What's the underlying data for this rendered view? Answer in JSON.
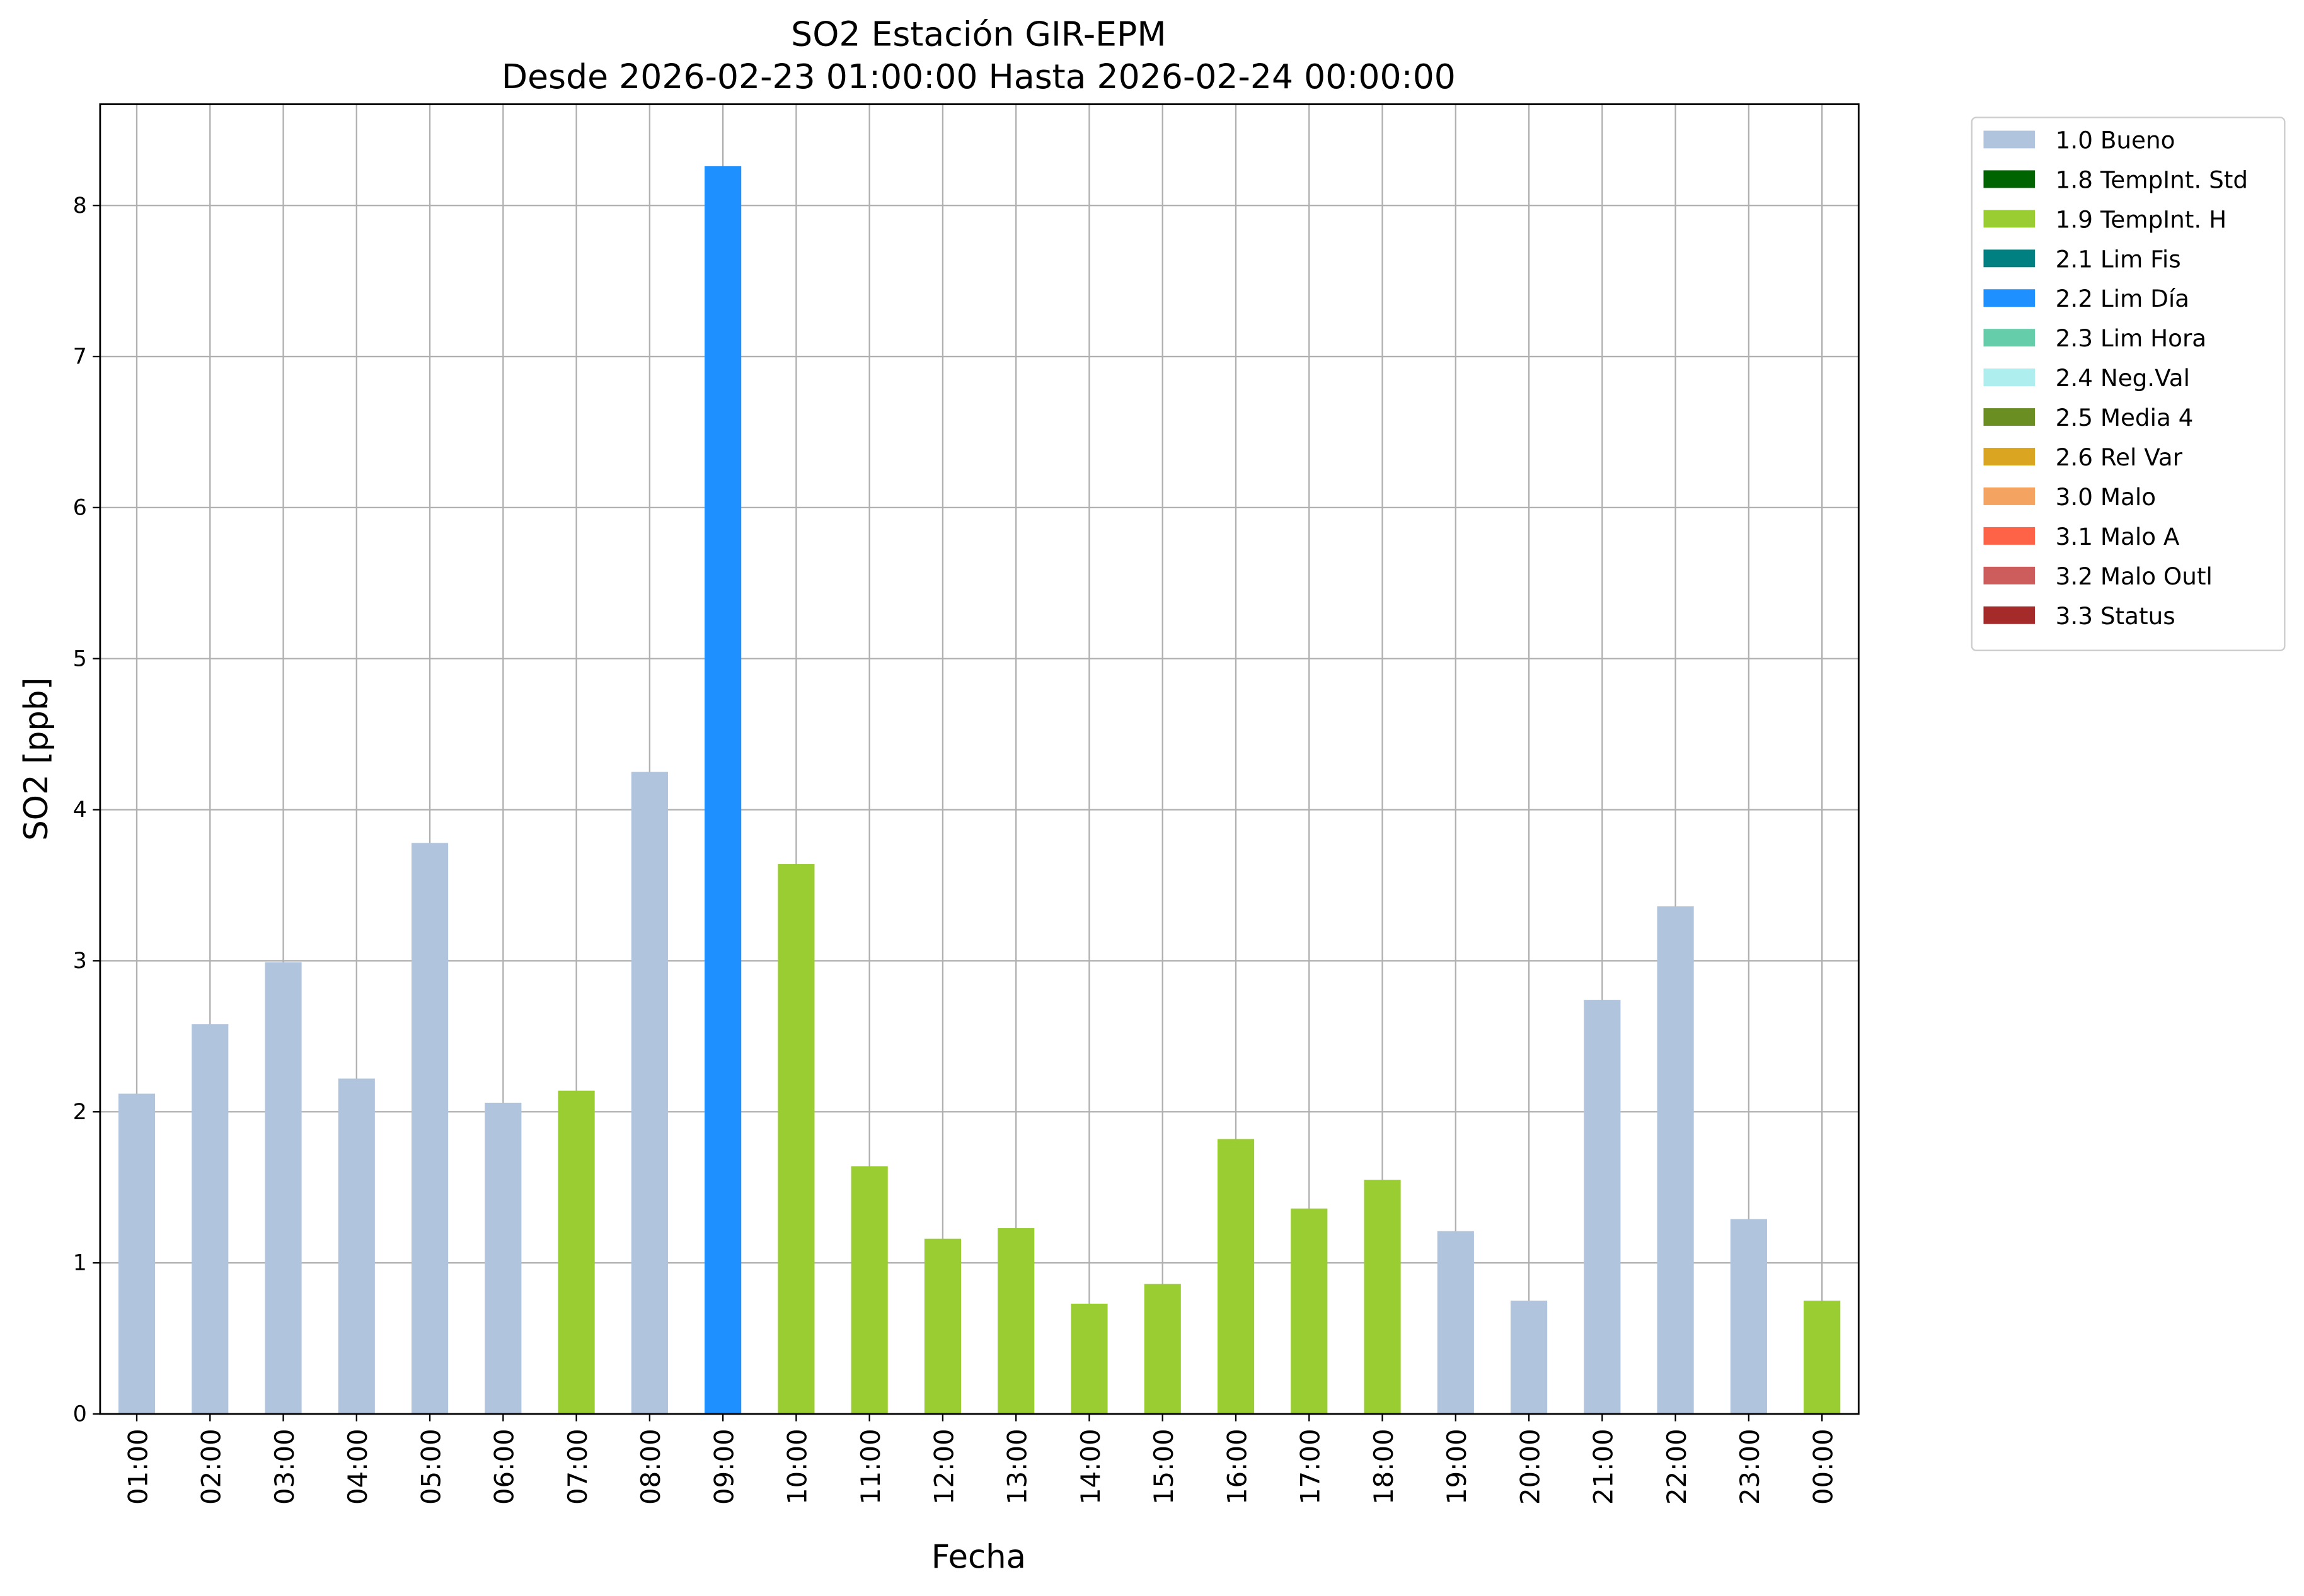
{
  "chart_data": {
    "type": "bar",
    "stacked": true,
    "title": "SO2 Estación GIR-EPM",
    "subtitle": "Desde 2026-02-23 01:00:00 Hasta 2026-02-24 00:00:00",
    "x_label": "Fecha",
    "y_label": "SO2 [ppb]",
    "categories": [
      "01:00",
      "02:00",
      "03:00",
      "04:00",
      "05:00",
      "06:00",
      "07:00",
      "08:00",
      "09:00",
      "10:00",
      "11:00",
      "12:00",
      "13:00",
      "14:00",
      "15:00",
      "16:00",
      "17:00",
      "18:00",
      "19:00",
      "20:00",
      "21:00",
      "22:00",
      "23:00",
      "00:00"
    ],
    "series": [
      {
        "name": "1.0 Bueno",
        "color": "#b0c4de",
        "values": [
          2.12,
          2.58,
          2.99,
          2.22,
          3.78,
          2.06,
          null,
          4.25,
          null,
          null,
          null,
          null,
          null,
          null,
          null,
          null,
          null,
          null,
          1.21,
          0.75,
          2.74,
          3.36,
          1.29,
          null
        ]
      },
      {
        "name": "1.8 TempInt. Std",
        "color": "#006400",
        "values": [
          null,
          null,
          null,
          null,
          null,
          null,
          null,
          null,
          null,
          null,
          null,
          null,
          null,
          null,
          null,
          null,
          null,
          null,
          null,
          null,
          null,
          null,
          null,
          null
        ]
      },
      {
        "name": "1.9 TempInt. H",
        "color": "#9acd32",
        "values": [
          null,
          null,
          null,
          null,
          null,
          null,
          2.14,
          null,
          null,
          3.64,
          1.64,
          1.16,
          1.23,
          0.73,
          0.86,
          1.82,
          1.36,
          1.55,
          null,
          null,
          null,
          null,
          null,
          0.75
        ]
      },
      {
        "name": "2.1 Lim Fis",
        "color": "#008080",
        "values": [
          null,
          null,
          null,
          null,
          null,
          null,
          null,
          null,
          null,
          null,
          null,
          null,
          null,
          null,
          null,
          null,
          null,
          null,
          null,
          null,
          null,
          null,
          null,
          null
        ]
      },
      {
        "name": "2.2 Lim Día",
        "color": "#1e90ff",
        "values": [
          null,
          null,
          null,
          null,
          null,
          null,
          null,
          null,
          8.26,
          null,
          null,
          null,
          null,
          null,
          null,
          null,
          null,
          null,
          null,
          null,
          null,
          null,
          null,
          null
        ]
      },
      {
        "name": "2.3 Lim Hora",
        "color": "#66cdaa",
        "values": [
          null,
          null,
          null,
          null,
          null,
          null,
          null,
          null,
          null,
          null,
          null,
          null,
          null,
          null,
          null,
          null,
          null,
          null,
          null,
          null,
          null,
          null,
          null,
          null
        ]
      },
      {
        "name": "2.4 Neg.Val",
        "color": "#afeeee",
        "values": [
          null,
          null,
          null,
          null,
          null,
          null,
          null,
          null,
          null,
          null,
          null,
          null,
          null,
          null,
          null,
          null,
          null,
          null,
          null,
          null,
          null,
          null,
          null,
          null
        ]
      },
      {
        "name": "2.5 Media 4",
        "color": "#6b8e23",
        "values": [
          null,
          null,
          null,
          null,
          null,
          null,
          null,
          null,
          null,
          null,
          null,
          null,
          null,
          null,
          null,
          null,
          null,
          null,
          null,
          null,
          null,
          null,
          null,
          null
        ]
      },
      {
        "name": "2.6 Rel Var",
        "color": "#daa520",
        "values": [
          null,
          null,
          null,
          null,
          null,
          null,
          null,
          null,
          null,
          null,
          null,
          null,
          null,
          null,
          null,
          null,
          null,
          null,
          null,
          null,
          null,
          null,
          null,
          null
        ]
      },
      {
        "name": "3.0 Malo",
        "color": "#f4a460",
        "values": [
          null,
          null,
          null,
          null,
          null,
          null,
          null,
          null,
          null,
          null,
          null,
          null,
          null,
          null,
          null,
          null,
          null,
          null,
          null,
          null,
          null,
          null,
          null,
          null
        ]
      },
      {
        "name": "3.1 Malo A",
        "color": "#ff6347",
        "values": [
          null,
          null,
          null,
          null,
          null,
          null,
          null,
          null,
          null,
          null,
          null,
          null,
          null,
          null,
          null,
          null,
          null,
          null,
          null,
          null,
          null,
          null,
          null,
          null
        ]
      },
      {
        "name": "3.2 Malo Outl",
        "color": "#cd5c5c",
        "values": [
          null,
          null,
          null,
          null,
          null,
          null,
          null,
          null,
          null,
          null,
          null,
          null,
          null,
          null,
          null,
          null,
          null,
          null,
          null,
          null,
          null,
          null,
          null,
          null
        ]
      },
      {
        "name": "3.3 Status",
        "color": "#a52a2a",
        "values": [
          null,
          null,
          null,
          null,
          null,
          null,
          null,
          null,
          null,
          null,
          null,
          null,
          null,
          null,
          null,
          null,
          null,
          null,
          null,
          null,
          null,
          null,
          null,
          null
        ]
      }
    ],
    "ylim": [
      0,
      8.67
    ],
    "yticks": [
      0,
      1,
      2,
      3,
      4,
      5,
      6,
      7,
      8
    ],
    "grid": true,
    "legend": "outside-right"
  }
}
